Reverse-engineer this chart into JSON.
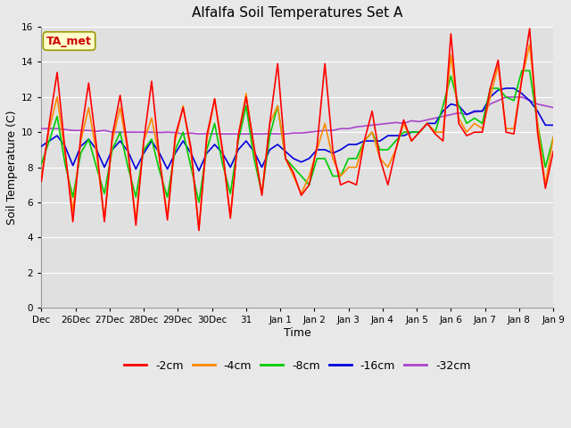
{
  "title": "Alfalfa Soil Temperatures Set A",
  "xlabel": "Time",
  "ylabel": "Soil Temperature (C)",
  "ylim": [
    0,
    16
  ],
  "yticks": [
    0,
    2,
    4,
    6,
    8,
    10,
    12,
    14,
    16
  ],
  "fig_bg": "#e8e8e8",
  "plot_bg": "#e0e0e0",
  "annotation_text": "TA_met",
  "annotation_color": "#cc0000",
  "annotation_bg": "#ffffcc",
  "colors": {
    "-2cm": "#ff0000",
    "-4cm": "#ff8800",
    "-8cm": "#00cc00",
    "-16cm": "#0000dd",
    "-32cm": "#aa44cc"
  },
  "xtick_labels": [
    "Dec",
    "26Dec",
    "27Dec",
    "28Dec",
    "29Dec",
    "30Dec",
    "31",
    "Jan 1",
    "Jan 2",
    "Jan 3",
    "Jan 4",
    "Jan 5",
    "Jan 6",
    "Jan 7",
    "Jan 8",
    "Jan 9"
  ],
  "x_positions": [
    0,
    1,
    2,
    3,
    4,
    5,
    6,
    7,
    8,
    9,
    10,
    11,
    12,
    13,
    14,
    15
  ],
  "n_days": 15,
  "series": {
    "-2cm": [
      7.2,
      10.5,
      13.4,
      9.0,
      4.9,
      9.8,
      12.8,
      9.2,
      4.9,
      9.8,
      12.1,
      9.0,
      4.7,
      9.5,
      12.9,
      8.5,
      5.0,
      9.8,
      11.4,
      9.1,
      4.4,
      9.8,
      11.9,
      9.0,
      5.1,
      9.8,
      12.0,
      9.2,
      6.4,
      10.5,
      13.9,
      8.5,
      7.7,
      6.4,
      7.0,
      9.2,
      13.9,
      9.0,
      7.0,
      7.2,
      7.0,
      9.5,
      11.2,
      8.5,
      7.0,
      9.0,
      10.7,
      9.5,
      10.0,
      10.5,
      9.9,
      9.5,
      15.6,
      10.5,
      9.8,
      10.0,
      10.0,
      12.5,
      14.1,
      10.0,
      9.9,
      13.0,
      15.9,
      10.0,
      6.8,
      8.9
    ],
    "-4cm": [
      7.5,
      10.2,
      12.0,
      8.8,
      5.5,
      9.5,
      11.4,
      8.8,
      5.0,
      9.5,
      11.4,
      8.8,
      5.0,
      9.5,
      10.8,
      8.5,
      5.2,
      9.5,
      11.5,
      8.8,
      4.5,
      9.5,
      11.9,
      8.8,
      5.2,
      9.8,
      12.2,
      9.0,
      6.5,
      10.5,
      11.5,
      8.5,
      7.5,
      6.5,
      7.5,
      9.0,
      10.5,
      8.5,
      7.5,
      8.0,
      8.0,
      9.5,
      10.0,
      8.5,
      8.0,
      9.0,
      10.5,
      9.5,
      10.0,
      10.5,
      10.0,
      10.0,
      14.4,
      10.8,
      10.0,
      10.5,
      10.2,
      12.0,
      13.8,
      10.2,
      10.2,
      13.0,
      15.0,
      10.5,
      7.0,
      9.7
    ],
    "-8cm": [
      8.2,
      9.5,
      10.9,
      8.2,
      6.3,
      8.8,
      9.6,
      8.0,
      6.5,
      9.0,
      10.0,
      8.0,
      6.3,
      9.0,
      9.6,
      7.8,
      6.3,
      9.0,
      10.0,
      8.0,
      6.0,
      9.0,
      10.5,
      8.2,
      6.5,
      9.5,
      11.5,
      8.5,
      6.5,
      9.8,
      11.5,
      8.5,
      8.0,
      7.5,
      7.0,
      8.5,
      8.5,
      7.5,
      7.5,
      8.5,
      8.5,
      9.5,
      10.0,
      9.0,
      9.0,
      9.5,
      10.0,
      10.0,
      10.0,
      10.5,
      10.0,
      11.5,
      13.2,
      11.5,
      10.5,
      10.8,
      10.5,
      12.5,
      12.5,
      12.0,
      11.8,
      13.5,
      13.5,
      10.5,
      8.0,
      9.7
    ],
    "-16cm": [
      9.2,
      9.5,
      9.8,
      9.2,
      8.1,
      9.2,
      9.6,
      9.0,
      8.0,
      9.0,
      9.5,
      8.9,
      7.9,
      8.8,
      9.5,
      8.8,
      7.9,
      8.8,
      9.5,
      8.8,
      7.8,
      8.8,
      9.3,
      8.8,
      8.0,
      9.0,
      9.5,
      8.9,
      8.0,
      9.0,
      9.3,
      8.9,
      8.5,
      8.3,
      8.5,
      9.0,
      9.0,
      8.8,
      9.0,
      9.3,
      9.3,
      9.5,
      9.5,
      9.5,
      9.8,
      9.8,
      9.8,
      10.0,
      10.0,
      10.5,
      10.5,
      11.2,
      11.6,
      11.5,
      11.0,
      11.2,
      11.2,
      12.0,
      12.4,
      12.5,
      12.5,
      12.2,
      11.8,
      11.2,
      10.4,
      10.4
    ],
    "-32cm": [
      10.2,
      10.2,
      10.2,
      10.15,
      10.1,
      10.1,
      10.1,
      10.05,
      10.1,
      10.0,
      10.0,
      10.0,
      10.0,
      10.0,
      10.0,
      9.98,
      10.0,
      9.98,
      9.9,
      9.95,
      9.9,
      9.92,
      9.9,
      9.9,
      9.9,
      9.9,
      9.9,
      9.9,
      9.9,
      9.92,
      9.9,
      9.9,
      9.95,
      9.95,
      10.0,
      10.05,
      10.1,
      10.1,
      10.2,
      10.2,
      10.3,
      10.35,
      10.4,
      10.45,
      10.5,
      10.55,
      10.5,
      10.65,
      10.6,
      10.7,
      10.8,
      10.9,
      11.0,
      11.1,
      11.0,
      11.15,
      11.2,
      11.6,
      11.8,
      12.0,
      12.0,
      12.0,
      11.8,
      11.6,
      11.5,
      11.4
    ]
  }
}
